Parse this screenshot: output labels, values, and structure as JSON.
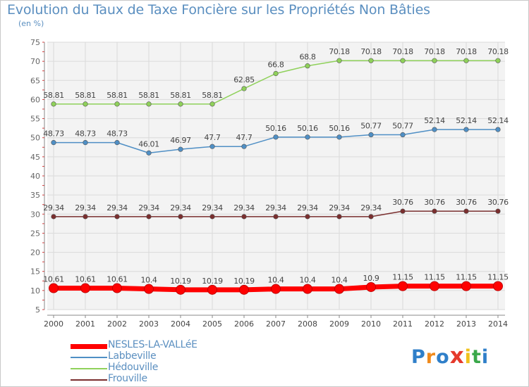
{
  "chart_data": {
    "type": "line",
    "title": "Evolution du Taux de Taxe Foncière sur les Propriétés Non Bâties",
    "unit_label": "(en %)",
    "x": [
      "2000",
      "2001",
      "2002",
      "2003",
      "2004",
      "2005",
      "2006",
      "2007",
      "2008",
      "2009",
      "2010",
      "2011",
      "2012",
      "2013",
      "2014"
    ],
    "ylim": [
      5,
      75
    ],
    "yticks": [
      "5",
      "10",
      "15",
      "20",
      "25",
      "30",
      "35",
      "40",
      "45",
      "50",
      "55",
      "60",
      "65",
      "70",
      "75"
    ],
    "grid": true,
    "legend_position": "bottom-left",
    "series": [
      {
        "name": "NESLES-LA-VALLéE",
        "color": "#ff0000",
        "values": [
          10.61,
          10.61,
          10.61,
          10.4,
          10.19,
          10.19,
          10.19,
          10.4,
          10.4,
          10.4,
          10.9,
          11.15,
          11.15,
          11.15,
          11.15
        ],
        "labels": [
          "10.61",
          "10.61",
          "10.61",
          "10.4",
          "10.19",
          "10.19",
          "10.19",
          "10.4",
          "10.4",
          "10.4",
          "10.9",
          "11.15",
          "11.15",
          "11.15",
          "11.15"
        ]
      },
      {
        "name": "Labbeville",
        "color": "#4f8fc5",
        "values": [
          48.73,
          48.73,
          48.73,
          46.01,
          46.97,
          47.7,
          47.7,
          50.16,
          50.16,
          50.16,
          50.77,
          50.77,
          52.14,
          52.14,
          52.14
        ],
        "labels": [
          "48.73",
          "48.73",
          "48.73",
          "46.01",
          "46.97",
          "47.7",
          "47.7",
          "50.16",
          "50.16",
          "50.16",
          "50.77",
          "50.77",
          "52.14",
          "52.14",
          "52.14"
        ]
      },
      {
        "name": "Hédouville",
        "color": "#8fd15a",
        "values": [
          58.81,
          58.81,
          58.81,
          58.81,
          58.81,
          58.81,
          62.85,
          66.8,
          68.8,
          70.18,
          70.18,
          70.18,
          70.18,
          70.18,
          70.18
        ],
        "labels": [
          "58.81",
          "58.81",
          "58.81",
          "58.81",
          "58.81",
          "58.81",
          "62.85",
          "66.8",
          "68.8",
          "70.18",
          "70.18",
          "70.18",
          "70.18",
          "70.18",
          "70.18"
        ]
      },
      {
        "name": "Frouville",
        "color": "#7a2e2e",
        "values": [
          29.34,
          29.34,
          29.34,
          29.34,
          29.34,
          29.34,
          29.34,
          29.34,
          29.34,
          29.34,
          29.34,
          30.76,
          30.76,
          30.76,
          30.76
        ],
        "labels": [
          "29.34",
          "29.34",
          "29.34",
          "29.34",
          "29.34",
          "29.34",
          "29.34",
          "29.34",
          "29.34",
          "29.34",
          "29.34",
          "30.76",
          "30.76",
          "30.76",
          "30.76"
        ]
      }
    ]
  },
  "legend": {
    "items": [
      {
        "label": "NESLES-LA-VALLéE",
        "color": "#ff0000"
      },
      {
        "label": "Labbeville",
        "color": "#4f8fc5"
      },
      {
        "label": "Hédouville",
        "color": "#8fd15a"
      },
      {
        "label": "Frouville",
        "color": "#7a2e2e"
      }
    ]
  },
  "logo": {
    "letters": [
      {
        "ch": "P",
        "color": "#2f7fc9"
      },
      {
        "ch": "r",
        "color": "#f08a1c"
      },
      {
        "ch": "o",
        "color": "#2f7fc9"
      },
      {
        "ch": "x",
        "color": "#e53a2c"
      },
      {
        "ch": "i",
        "color": "#f0c21c"
      },
      {
        "ch": "t",
        "color": "#3aa84a"
      },
      {
        "ch": "i",
        "color": "#2f7fc9"
      }
    ]
  }
}
